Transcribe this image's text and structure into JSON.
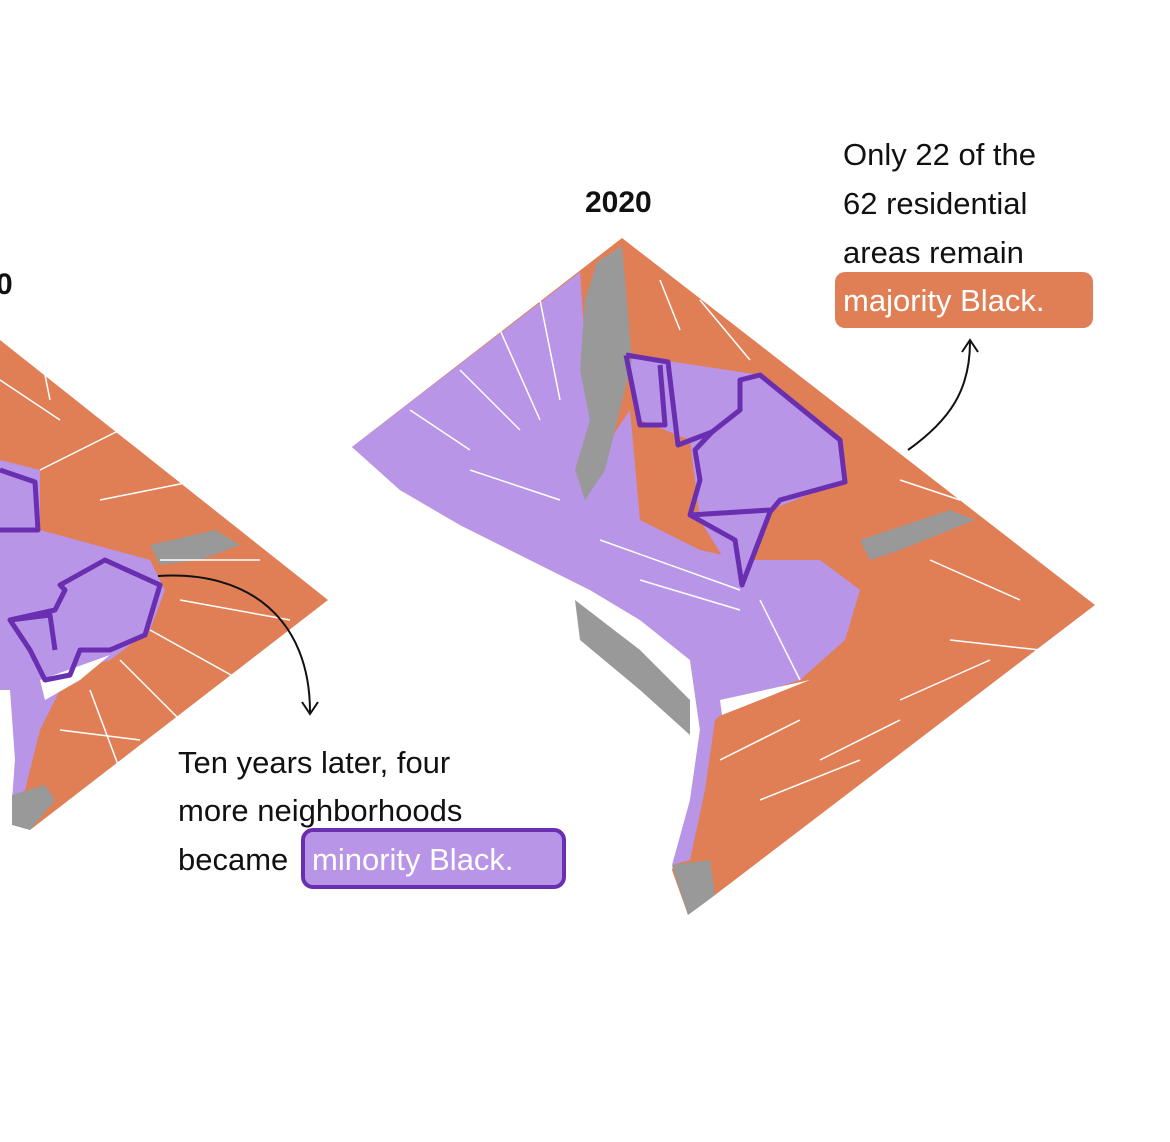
{
  "maps": [
    {
      "year": "0"
    },
    {
      "year": "2020"
    }
  ],
  "annotations": [
    {
      "lines": [
        "Ten years later, four",
        "more neighborhoods",
        "became"
      ],
      "highlight": "minority Black."
    },
    {
      "lines": [
        "Only 22 of the",
        "62 residential",
        "areas remain"
      ],
      "highlight": "majority Black."
    }
  ]
}
